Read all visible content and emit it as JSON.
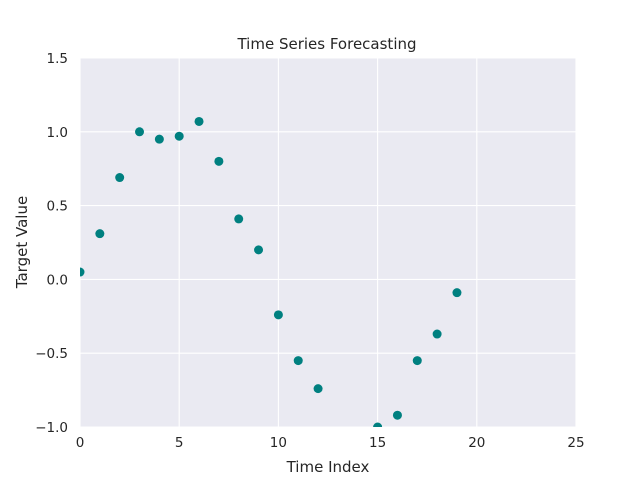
{
  "chart_data": {
    "type": "scatter",
    "title": "Time Series Forecasting",
    "xlabel": "Time Index",
    "ylabel": "Target Value",
    "xlim": [
      0,
      25
    ],
    "ylim": [
      -1.0,
      1.5
    ],
    "xticks": [
      0,
      5,
      10,
      15,
      20,
      25
    ],
    "xtick_labels": [
      "0",
      "5",
      "10",
      "15",
      "20",
      "25"
    ],
    "yticks": [
      -1.0,
      -0.5,
      0.0,
      0.5,
      1.0,
      1.5
    ],
    "ytick_labels": [
      "−1.0",
      "−0.5",
      "0.0",
      "0.5",
      "1.0",
      "1.5"
    ],
    "grid": true,
    "colors": {
      "background": "#eaeaf2",
      "grid": "#ffffff",
      "marker": "#008080"
    },
    "series": [
      {
        "x": [
          0,
          1,
          2,
          3,
          4,
          5,
          6,
          7,
          8,
          9,
          10,
          11,
          12,
          15,
          16,
          17,
          18,
          19
        ],
        "y": [
          0.05,
          0.31,
          0.69,
          1.0,
          0.95,
          0.97,
          1.07,
          0.8,
          0.41,
          0.2,
          -0.24,
          -0.55,
          -0.74,
          -1.0,
          -0.92,
          -0.55,
          -0.37,
          -0.09
        ]
      }
    ]
  }
}
